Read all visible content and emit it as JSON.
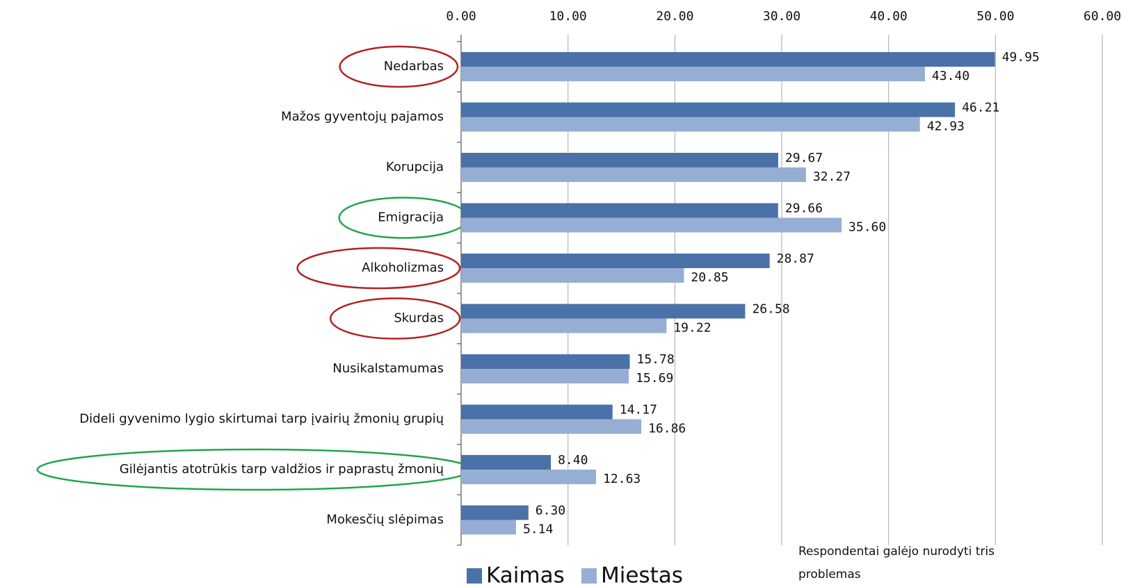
{
  "chart_data": {
    "type": "barh",
    "categories": [
      "Nedarbas",
      "Mažos gyventojų pajamos",
      "Korupcija",
      "Emigracija",
      "Alkoholizmas",
      "Skurdas",
      "Nusikalstamumas",
      "Dideli gyvenimo lygio skirtumai tarp įvairių žmonių grupių",
      "Gilėjantis atotrūkis tarp valdžios ir paprastų žmonių",
      "Mokesčių slėpimas"
    ],
    "series": [
      {
        "name": "Kaimas",
        "color": "#4a72a8",
        "values": [
          49.95,
          46.21,
          29.67,
          29.66,
          28.87,
          26.58,
          15.78,
          14.17,
          8.4,
          6.3
        ],
        "value_labels": [
          "49.95",
          "46.21",
          "29.67",
          "29.66",
          "28.87",
          "26.58",
          "15.78",
          "14.17",
          "8.40",
          "6.30"
        ]
      },
      {
        "name": "Miestas",
        "color": "#97aed4",
        "values": [
          43.4,
          42.93,
          32.27,
          35.6,
          20.85,
          19.22,
          15.69,
          16.86,
          12.63,
          5.14
        ],
        "value_labels": [
          "43.40",
          "42.93",
          "32.27",
          "35.60",
          "20.85",
          "19.22",
          "15.69",
          "16.86",
          "12.63",
          "5.14"
        ]
      }
    ],
    "xlim": [
      0,
      60
    ],
    "xticks": [
      {
        "value": 0,
        "label": "0.00"
      },
      {
        "value": 10,
        "label": "10.00"
      },
      {
        "value": 20,
        "label": "20.00"
      },
      {
        "value": 30,
        "label": "30.00"
      },
      {
        "value": 40,
        "label": "40.00"
      },
      {
        "value": 50,
        "label": "50.00"
      },
      {
        "value": 60,
        "label": "60.00"
      }
    ],
    "grid": true,
    "annotation": [
      "Respondentai galėjo nurodyti tris",
      "problemas"
    ]
  }
}
